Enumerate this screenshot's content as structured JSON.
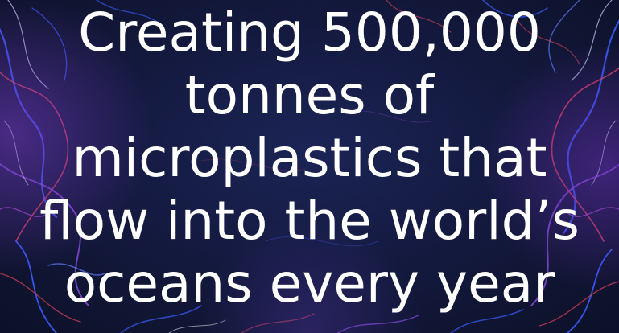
{
  "headline": {
    "lines": [
      "Creating 500,000",
      "tonnes of",
      "microplastics that",
      "flow into the world’s",
      "oceans every year"
    ]
  },
  "colors": {
    "background": "#141a3c",
    "text": "#ffffff",
    "fiber_blue": "#3b5cff",
    "fiber_red": "#e0405a",
    "fiber_purple": "#8a4be0",
    "fiber_white": "#c9d4ff"
  }
}
